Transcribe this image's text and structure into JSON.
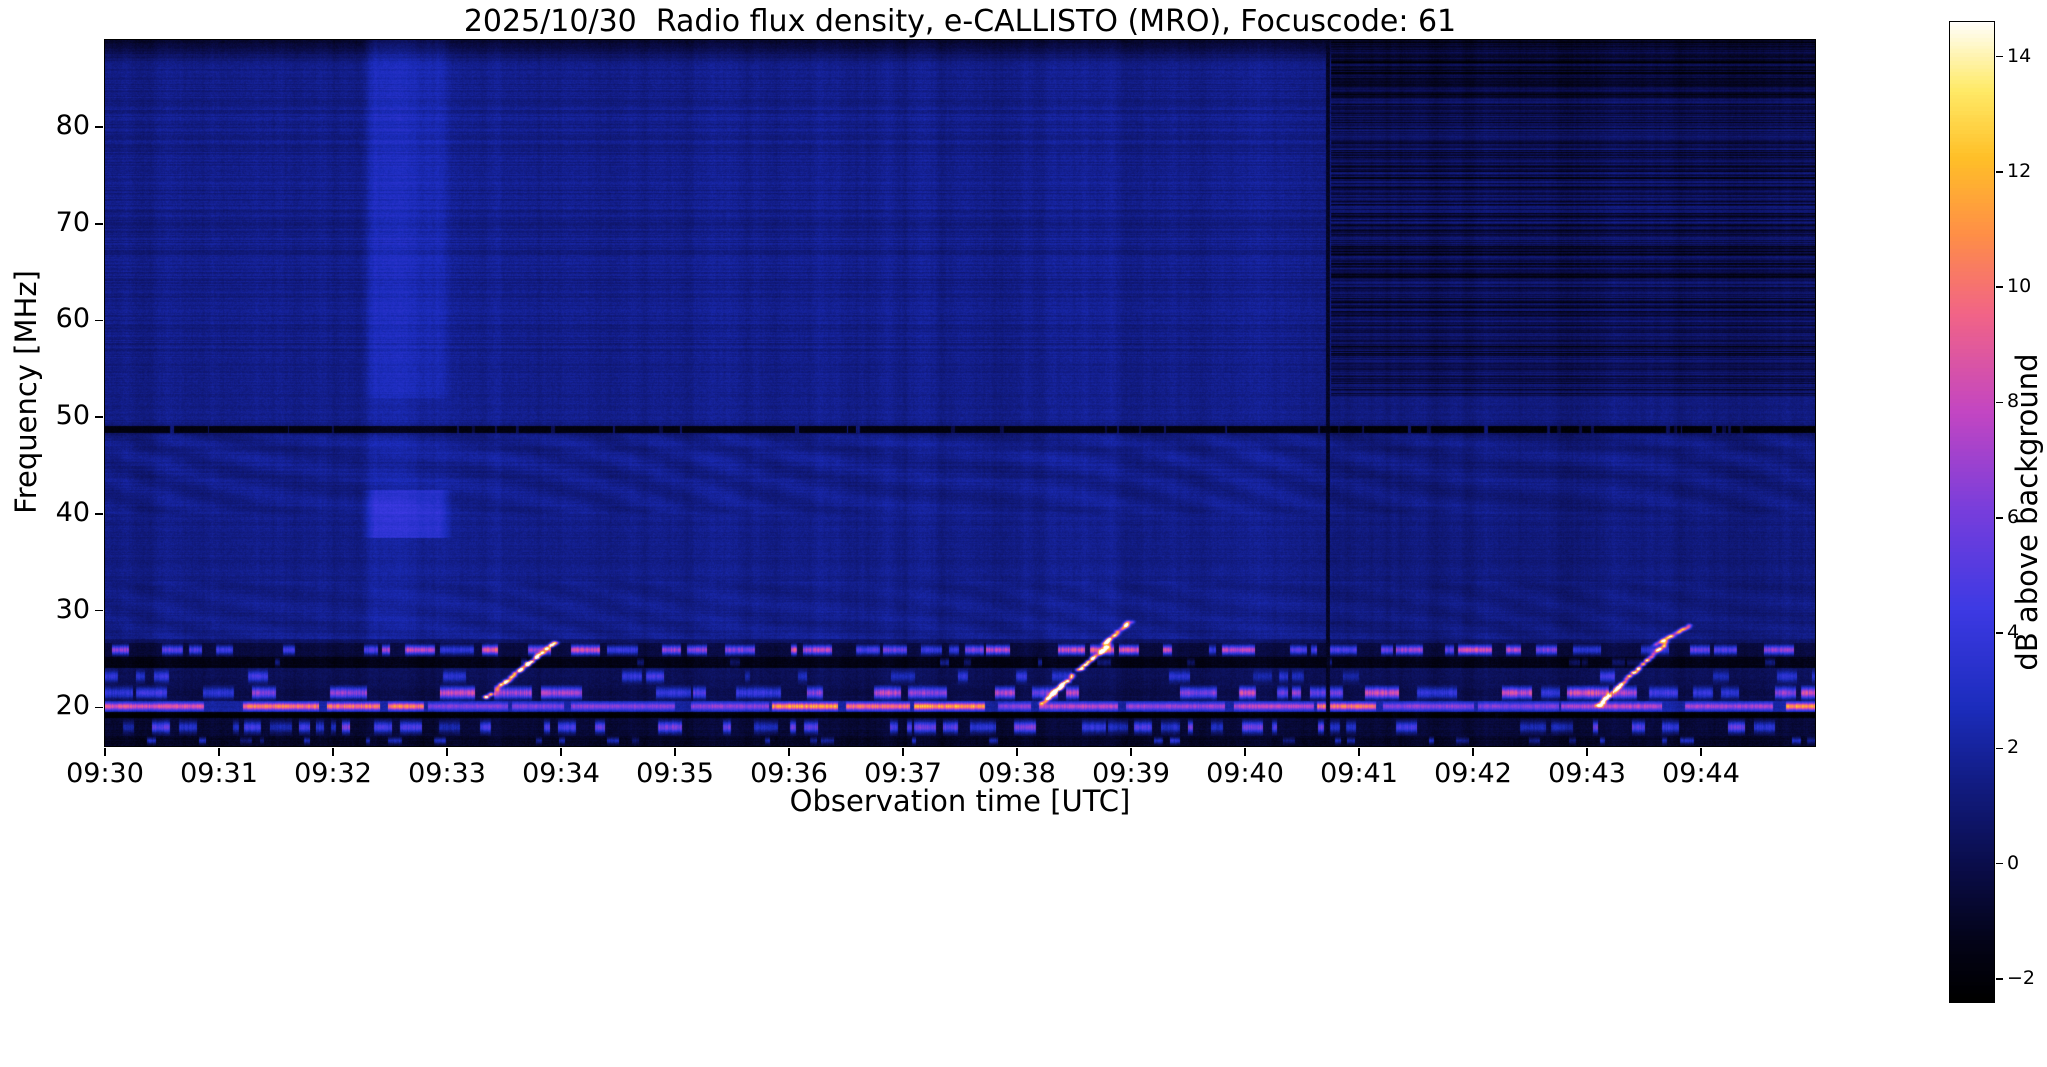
{
  "figure": {
    "background": "#ffffff"
  },
  "chart_data": {
    "type": "heatmap",
    "title": "2025/10/30  Radio flux density, e-CALLISTO (MRO), Focuscode: 61",
    "xlabel": "Observation time [UTC]",
    "ylabel": "Frequency [MHz]",
    "x_tick_labels": [
      "09:30",
      "09:31",
      "09:32",
      "09:33",
      "09:34",
      "09:35",
      "09:36",
      "09:37",
      "09:38",
      "09:39",
      "09:40",
      "09:41",
      "09:42",
      "09:43",
      "09:44"
    ],
    "x_range_minutes": [
      0,
      15
    ],
    "y_ticks": [
      20,
      30,
      40,
      50,
      60,
      70,
      80
    ],
    "y_range_mhz": [
      16,
      89
    ],
    "background_level_db": 1.5,
    "colorbar": {
      "label": "dB above background",
      "tick_values": [
        14,
        12,
        10,
        8,
        6,
        4,
        2,
        0,
        -2
      ],
      "tick_labels": [
        "14",
        "12",
        "10",
        "8",
        "6",
        "4",
        "2",
        "0",
        "−2"
      ],
      "range": [
        -2.4,
        14.6
      ]
    },
    "colormap_stops": [
      [
        0.0,
        0,
        0,
        0
      ],
      [
        0.06,
        4,
        4,
        25
      ],
      [
        0.13,
        10,
        12,
        70
      ],
      [
        0.22,
        18,
        28,
        130
      ],
      [
        0.3,
        28,
        45,
        190
      ],
      [
        0.4,
        62,
        58,
        228
      ],
      [
        0.5,
        120,
        62,
        220
      ],
      [
        0.6,
        195,
        70,
        195
      ],
      [
        0.7,
        242,
        100,
        135
      ],
      [
        0.78,
        255,
        142,
        72
      ],
      [
        0.86,
        255,
        192,
        40
      ],
      [
        0.93,
        255,
        235,
        105
      ],
      [
        1.0,
        255,
        255,
        255
      ]
    ],
    "features": {
      "enhancement_band": {
        "t_min": 2.3,
        "t_max": 3.0,
        "boost_hi": 1.1,
        "boost_blob": 2.1,
        "f_blob": [
          37.5,
          42.5
        ]
      },
      "dark_channel": {
        "f": 48.7,
        "half_width": 0.38,
        "level": -1.7,
        "dots": {
          "density": 0.22,
          "amp": 3.6,
          "min_len": 1,
          "max_len": 4
        }
      },
      "interference_ripples": {
        "f_min": 40,
        "f_max": 48.3,
        "amp": 0.32
      },
      "quiet_sector": {
        "t_start": 10.76,
        "f_min": 52,
        "level": 0.35
      },
      "sector_boundary_line": {
        "t": 10.73,
        "level": -1.0
      },
      "rfi_bands": [
        {
          "f_min": 25.2,
          "f_max": 26.6,
          "baseline": -0.4,
          "amp": 11,
          "density": 0.4,
          "min_len": 6,
          "max_len": 34
        },
        {
          "f_min": 24.0,
          "f_max": 25.2,
          "baseline": -1.4,
          "amp": 4,
          "density": 0.1,
          "min_len": 4,
          "max_len": 16
        },
        {
          "f_min": 22.3,
          "f_max": 24.0,
          "baseline": 0.2,
          "amp": 5,
          "density": 0.15,
          "min_len": 5,
          "max_len": 24
        },
        {
          "f_min": 20.6,
          "f_max": 22.3,
          "baseline": 0.0,
          "amp": 10,
          "density": 0.35,
          "min_len": 8,
          "max_len": 46
        },
        {
          "f_min": 19.5,
          "f_max": 20.6,
          "baseline": 2.0,
          "amp": 11,
          "density": 0.75,
          "min_len": 30,
          "max_len": 120
        },
        {
          "f_min": 18.8,
          "f_max": 19.5,
          "baseline": -2.1,
          "amp": 0.5,
          "density": 0.05,
          "min_len": 3,
          "max_len": 8
        },
        {
          "f_min": 17.0,
          "f_max": 18.8,
          "baseline": -0.6,
          "amp": 8,
          "density": 0.35,
          "min_len": 5,
          "max_len": 26
        },
        {
          "f_min": 16.0,
          "f_max": 17.0,
          "baseline": -1.0,
          "amp": 5,
          "density": 0.14,
          "min_len": 4,
          "max_len": 14
        }
      ],
      "drifting_bursts": [
        {
          "t_start": 3.33,
          "t_end": 3.95,
          "f_start": 21.0,
          "f_end": 26.8,
          "amp": 9
        },
        {
          "t_start": 8.22,
          "t_end": 8.8,
          "f_start": 20.5,
          "f_end": 26.5,
          "amp": 10
        },
        {
          "t_start": 8.75,
          "t_end": 9.0,
          "f_start": 26.5,
          "f_end": 29.0,
          "amp": 4
        },
        {
          "t_start": 13.08,
          "t_end": 13.7,
          "f_start": 20.0,
          "f_end": 26.8,
          "amp": 10
        },
        {
          "t_start": 13.6,
          "t_end": 13.9,
          "f_start": 26.5,
          "f_end": 28.5,
          "amp": 3
        }
      ]
    }
  }
}
